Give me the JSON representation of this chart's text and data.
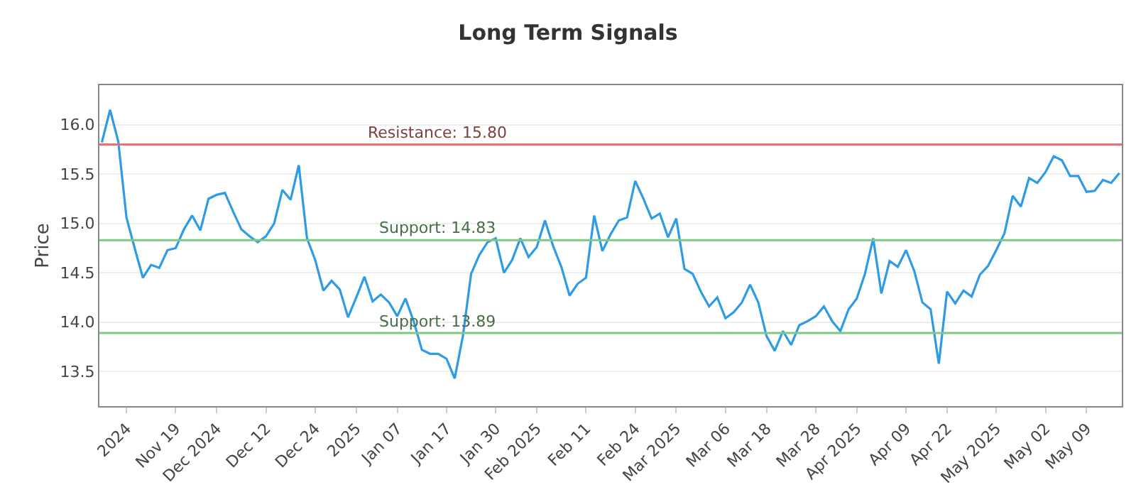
{
  "chart_data": {
    "type": "line",
    "title": "Long Term Signals",
    "ylabel": "Price",
    "categories": [
      null,
      null,
      null,
      "2024",
      null,
      null,
      null,
      null,
      null,
      "Nov 19",
      null,
      null,
      null,
      null,
      "Dec 2024",
      null,
      null,
      null,
      null,
      null,
      "Dec 12",
      null,
      null,
      null,
      null,
      null,
      "Dec 24",
      null,
      null,
      null,
      null,
      "2025",
      null,
      null,
      null,
      null,
      "Jan 07",
      null,
      null,
      null,
      null,
      null,
      "Jan 17",
      null,
      null,
      null,
      null,
      null,
      "Jan 30",
      null,
      null,
      null,
      null,
      "Feb 2025",
      null,
      null,
      null,
      null,
      null,
      "Feb 11",
      null,
      null,
      null,
      null,
      null,
      "Feb 24",
      null,
      null,
      null,
      null,
      "Mar 2025",
      null,
      null,
      null,
      null,
      null,
      "Mar 06",
      null,
      null,
      null,
      null,
      "Mar 18",
      null,
      null,
      null,
      null,
      null,
      "Mar 28",
      null,
      null,
      null,
      null,
      "Apr 2025",
      null,
      null,
      null,
      null,
      null,
      "Apr 09",
      null,
      null,
      null,
      null,
      "Apr 22",
      null,
      null,
      null,
      null,
      null,
      "May 2025",
      null,
      null,
      null,
      null,
      null,
      "May 02",
      null,
      null,
      null,
      null,
      "May 09",
      null,
      null,
      null,
      null
    ],
    "series": [
      {
        "color": "#2e9be6",
        "values": [
          15.82,
          16.15,
          15.83,
          15.06,
          14.75,
          14.45,
          14.58,
          14.55,
          14.73,
          14.75,
          14.94,
          15.08,
          14.93,
          15.25,
          15.29,
          15.31,
          15.12,
          14.94,
          14.87,
          14.81,
          14.87,
          15.0,
          15.34,
          15.24,
          15.59,
          14.85,
          14.63,
          14.32,
          14.42,
          14.33,
          14.05,
          14.25,
          14.46,
          14.21,
          14.28,
          14.2,
          14.06,
          14.24,
          14.01,
          13.72,
          13.68,
          13.68,
          13.63,
          13.43,
          13.86,
          14.49,
          14.68,
          14.81,
          14.85,
          14.5,
          14.63,
          14.85,
          14.66,
          14.76,
          15.03,
          14.77,
          14.56,
          14.27,
          14.39,
          14.45,
          15.08,
          14.72,
          14.89,
          15.03,
          15.06,
          15.43,
          15.25,
          15.05,
          15.1,
          14.86,
          15.05,
          14.54,
          14.49,
          14.31,
          14.16,
          14.25,
          14.04,
          14.1,
          14.2,
          14.38,
          14.2,
          13.86,
          13.71,
          13.91,
          13.77,
          13.97,
          14.01,
          14.06,
          14.16,
          14.01,
          13.91,
          14.13,
          14.24,
          14.49,
          14.85,
          14.29,
          14.62,
          14.56,
          14.73,
          14.52,
          14.2,
          14.13,
          13.58,
          14.31,
          14.19,
          14.32,
          14.26,
          14.48,
          14.57,
          14.73,
          14.9,
          15.28,
          15.17,
          15.46,
          15.41,
          15.52,
          15.68,
          15.64,
          15.48,
          15.48,
          15.32,
          15.33,
          15.44,
          15.41,
          15.51
        ]
      }
    ],
    "ylim": [
      13.15,
      16.4
    ],
    "yticks": [
      13.5,
      {
        "value": 14,
        "label": "14.0"
      },
      14.5,
      {
        "value": 15,
        "label": "15.0"
      },
      15.5,
      {
        "value": 16,
        "label": "16.0"
      }
    ],
    "ref_lines": [
      {
        "axis": "y",
        "value": 15.8,
        "label": "Resistance: 15.80",
        "color": "#e57373"
      },
      {
        "axis": "y",
        "value": 14.83,
        "label": "Support: 14.83",
        "color": "#81c784"
      },
      {
        "axis": "y",
        "value": 13.89,
        "label": "Support: 13.89",
        "color": "#81c784"
      }
    ],
    "grid": "y",
    "marker": "none",
    "line_style": "solid"
  }
}
